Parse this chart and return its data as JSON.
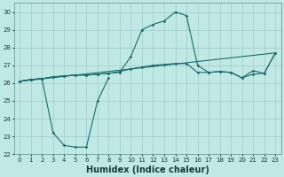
{
  "xlabel": "Humidex (Indice chaleur)",
  "bg_color": "#c0e8e4",
  "grid_color": "#a0cccc",
  "line_color": "#1a6b6b",
  "xlim": [
    -0.5,
    23.5
  ],
  "ylim": [
    22,
    30.5
  ],
  "yticks": [
    22,
    23,
    24,
    25,
    26,
    27,
    28,
    29,
    30
  ],
  "xticks": [
    0,
    1,
    2,
    3,
    4,
    5,
    6,
    7,
    8,
    9,
    10,
    11,
    12,
    13,
    14,
    15,
    16,
    17,
    18,
    19,
    20,
    21,
    22,
    23
  ],
  "line1_x": [
    0,
    1,
    2,
    3,
    4,
    5,
    6,
    7,
    8
  ],
  "line1_y": [
    26.1,
    26.2,
    26.25,
    23.2,
    22.5,
    22.4,
    22.4,
    25.0,
    26.3
  ],
  "line2_x": [
    0,
    1,
    2,
    3,
    4,
    5,
    6,
    7,
    8,
    9,
    10,
    11,
    12,
    13,
    14,
    15,
    16,
    17,
    18,
    19,
    20,
    21,
    22,
    23
  ],
  "line2_y": [
    26.1,
    26.2,
    26.25,
    26.35,
    26.4,
    26.45,
    26.45,
    26.5,
    26.55,
    26.6,
    27.5,
    29.0,
    29.3,
    29.5,
    30.0,
    29.8,
    27.0,
    26.6,
    26.65,
    26.6,
    26.3,
    26.7,
    26.55,
    27.7
  ],
  "line3_x": [
    0,
    1,
    2,
    3,
    4,
    5,
    6,
    7,
    8,
    9,
    10,
    11,
    12,
    13,
    14,
    15,
    16,
    17,
    18,
    19,
    20,
    21,
    22,
    23
  ],
  "line3_y": [
    26.1,
    26.2,
    26.25,
    26.35,
    26.4,
    26.45,
    26.45,
    26.5,
    26.55,
    26.65,
    26.8,
    26.9,
    27.0,
    27.05,
    27.1,
    27.1,
    26.6,
    26.6,
    26.65,
    26.6,
    26.3,
    26.5,
    26.55,
    27.7
  ],
  "line4_x": [
    0,
    23
  ],
  "line4_y": [
    26.1,
    27.7
  ],
  "xlabel_fontsize": 7,
  "tick_fontsize": 5,
  "linewidth": 0.8,
  "markersize": 1.8
}
